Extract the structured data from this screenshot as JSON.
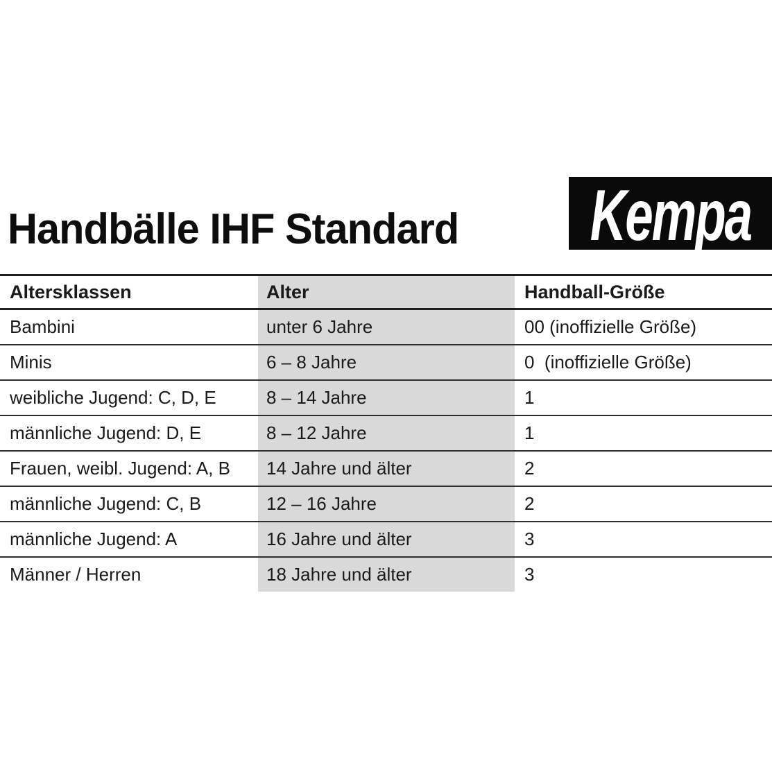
{
  "page": {
    "background_color": "#ffffff",
    "text_color": "#1a1a1a"
  },
  "header": {
    "title": "Handbälle IHF Standard",
    "logo": {
      "text": "Kempa",
      "background_color": "#0a0a0a",
      "text_color": "#ffffff"
    }
  },
  "table": {
    "highlighted_column": "Alter",
    "highlight_color": "#d9d9d9",
    "border_color": "#1f1f1f",
    "columns": [
      "Altersklassen",
      "Alter",
      "Handball-Größe"
    ],
    "rows": [
      [
        "Bambini",
        "unter 6 Jahre",
        "00 (inoffizielle Größe)"
      ],
      [
        "Minis",
        "6 – 8 Jahre",
        "0  (inoffizielle Größe)"
      ],
      [
        "weibliche Jugend: C, D, E",
        "8 – 14 Jahre",
        "1"
      ],
      [
        "männliche Jugend: D, E",
        "8 – 12 Jahre",
        "1"
      ],
      [
        "Frauen, weibl. Jugend: A, B",
        "14 Jahre und älter",
        "2"
      ],
      [
        "männliche Jugend: C, B",
        "12 – 16 Jahre",
        "2"
      ],
      [
        "männliche Jugend: A",
        "16 Jahre und älter",
        "3"
      ],
      [
        "Männer / Herren",
        "18 Jahre und älter",
        "3"
      ]
    ]
  }
}
